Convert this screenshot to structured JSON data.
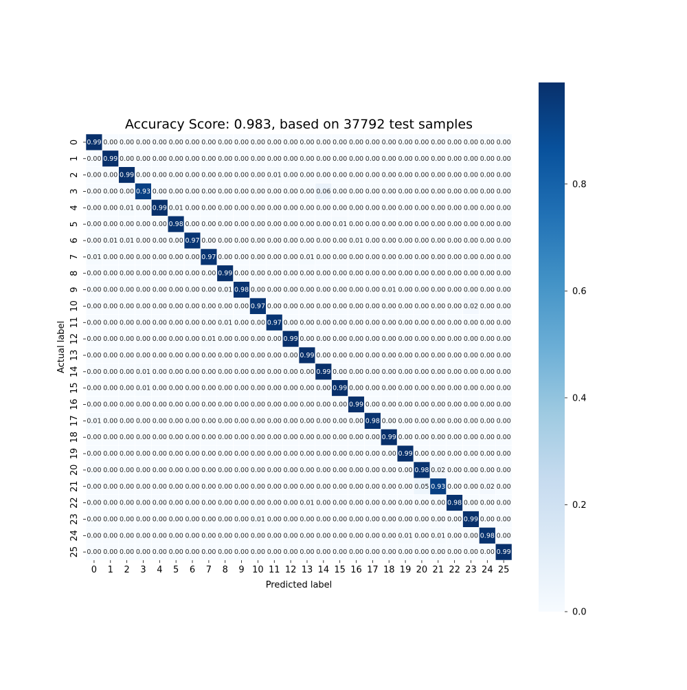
{
  "chart_data": {
    "type": "heatmap",
    "title": "Accuracy Score: 0.983, based on 37792 test samples",
    "xlabel": "Predicted label",
    "ylabel": "Actual label",
    "x_tick_labels": [
      "0",
      "1",
      "2",
      "3",
      "4",
      "5",
      "6",
      "7",
      "8",
      "9",
      "10",
      "11",
      "12",
      "13",
      "14",
      "15",
      "16",
      "17",
      "18",
      "19",
      "20",
      "21",
      "22",
      "23",
      "24",
      "25"
    ],
    "y_tick_labels": [
      "0",
      "1",
      "2",
      "3",
      "4",
      "5",
      "6",
      "7",
      "8",
      "9",
      "10",
      "11",
      "12",
      "13",
      "14",
      "15",
      "16",
      "17",
      "18",
      "19",
      "20",
      "21",
      "22",
      "23",
      "24",
      "25"
    ],
    "diagonal": [
      0.99,
      0.99,
      0.99,
      0.93,
      0.99,
      0.98,
      0.97,
      0.97,
      0.99,
      0.98,
      0.97,
      0.97,
      0.99,
      0.99,
      0.99,
      0.99,
      0.99,
      0.98,
      0.99,
      0.99,
      0.98,
      0.93,
      0.98,
      0.99,
      0.98,
      0.99
    ],
    "off_diagonal": [
      {
        "row": 2,
        "col": 11,
        "value": 0.01
      },
      {
        "row": 3,
        "col": 14,
        "value": 0.06
      },
      {
        "row": 4,
        "col": 2,
        "value": 0.01
      },
      {
        "row": 4,
        "col": 5,
        "value": 0.01
      },
      {
        "row": 5,
        "col": 15,
        "value": 0.01
      },
      {
        "row": 6,
        "col": 1,
        "value": 0.01
      },
      {
        "row": 6,
        "col": 2,
        "value": 0.01
      },
      {
        "row": 6,
        "col": 16,
        "value": 0.01
      },
      {
        "row": 7,
        "col": 0,
        "value": 0.01
      },
      {
        "row": 7,
        "col": 13,
        "value": 0.01
      },
      {
        "row": 9,
        "col": 8,
        "value": 0.01
      },
      {
        "row": 9,
        "col": 18,
        "value": 0.01
      },
      {
        "row": 10,
        "col": 23,
        "value": 0.02
      },
      {
        "row": 11,
        "col": 8,
        "value": 0.01
      },
      {
        "row": 12,
        "col": 7,
        "value": 0.01
      },
      {
        "row": 14,
        "col": 3,
        "value": 0.01
      },
      {
        "row": 15,
        "col": 3,
        "value": 0.01
      },
      {
        "row": 17,
        "col": 0,
        "value": 0.01
      },
      {
        "row": 20,
        "col": 21,
        "value": 0.02
      },
      {
        "row": 21,
        "col": 20,
        "value": 0.05
      },
      {
        "row": 21,
        "col": 24,
        "value": 0.02
      },
      {
        "row": 22,
        "col": 13,
        "value": 0.01
      },
      {
        "row": 23,
        "col": 10,
        "value": 0.01
      },
      {
        "row": 24,
        "col": 19,
        "value": 0.01
      },
      {
        "row": 24,
        "col": 21,
        "value": 0.01
      }
    ],
    "default_value": 0.0,
    "value_format": "0.00",
    "colormap": "Blues",
    "colorbar": {
      "min": 0.0,
      "max": 0.99,
      "ticks": [
        "0.0",
        "0.2",
        "0.4",
        "0.6",
        "0.8"
      ]
    },
    "grid": true,
    "legend": "colorbar-right"
  }
}
